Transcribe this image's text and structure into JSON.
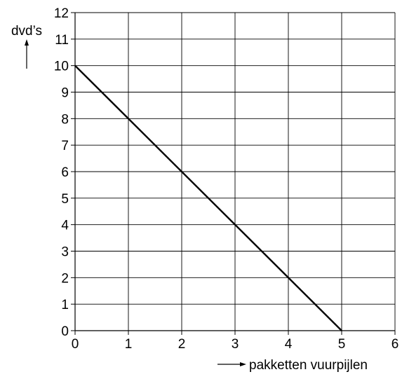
{
  "chart_data": {
    "type": "line",
    "xlabel": "pakketten vuurpijlen",
    "ylabel": "dvd’s",
    "xlim": [
      0,
      6
    ],
    "ylim": [
      0,
      12
    ],
    "xticks": [
      0,
      1,
      2,
      3,
      4,
      5,
      6
    ],
    "yticks": [
      0,
      1,
      2,
      3,
      4,
      5,
      6,
      7,
      8,
      9,
      10,
      11,
      12
    ],
    "grid": true,
    "line_color": "#000000",
    "grid_color": "#000000",
    "series": [
      {
        "x": [
          0,
          5
        ],
        "y": [
          10,
          0
        ]
      }
    ]
  }
}
